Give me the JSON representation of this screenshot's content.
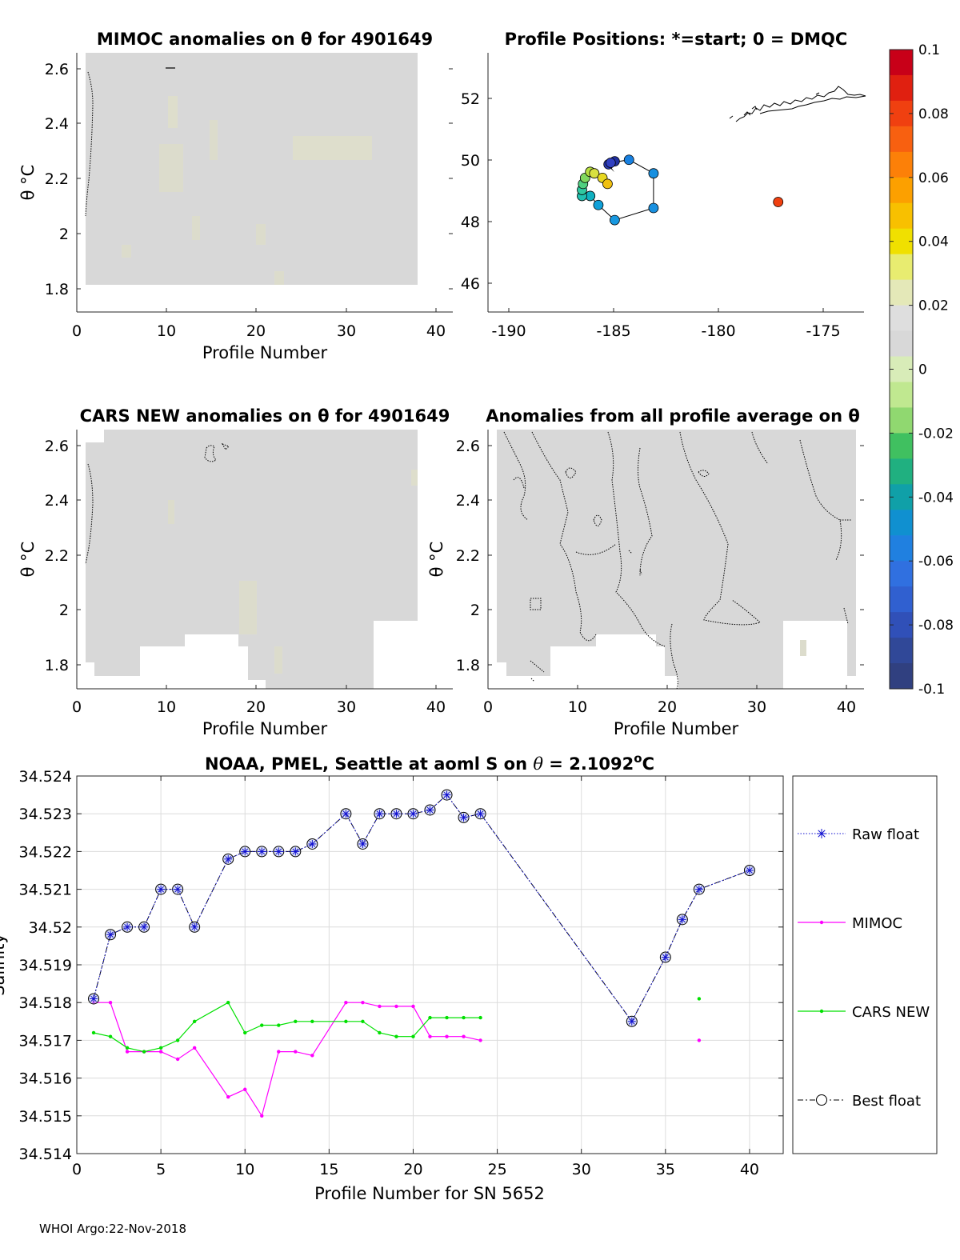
{
  "footer": "WHOI Argo:22-Nov-2018",
  "colors": {
    "field": "#d8d8d8",
    "field_tint": "#dfdfcf",
    "raw": "#1010d0",
    "mimoc": "#ff00ff",
    "cars": "#00e000",
    "best": "#000000",
    "grid": "#dcdcdc"
  },
  "panels": {
    "mimoc": {
      "title": "MIMOC anomalies on θ  for 4901649",
      "ylabel": "θ °C",
      "xlabel": "Profile Number",
      "xticks": [
        "0",
        "10",
        "20",
        "30",
        "40"
      ],
      "yticks": [
        "1.8",
        "2",
        "2.2",
        "2.4",
        "2.6"
      ]
    },
    "positions": {
      "title": "Profile Positions: *=start; 0 = DMQC",
      "xticks": [
        "-190",
        "-185",
        "-180",
        "-175"
      ],
      "yticks": [
        "46",
        "48",
        "50",
        "52"
      ]
    },
    "cars": {
      "title": "CARS NEW anomalies on θ for 4901649",
      "ylabel": "θ °C",
      "xlabel": "Profile Number",
      "xticks": [
        "0",
        "10",
        "20",
        "30",
        "40"
      ],
      "yticks": [
        "1.8",
        "2",
        "2.2",
        "2.4",
        "2.6"
      ]
    },
    "allavg": {
      "title": "Anomalies from all profile average on θ",
      "ylabel": "θ °C",
      "xlabel": "Profile Number",
      "xticks": [
        "0",
        "10",
        "20",
        "30",
        "40"
      ],
      "yticks": [
        "1.8",
        "2",
        "2.2",
        "2.4",
        "2.6"
      ]
    }
  },
  "colorbar": {
    "ticks": [
      "0.1",
      "0.08",
      "0.06",
      "0.04",
      "0.02",
      "0",
      "-0.02",
      "-0.04",
      "-0.06",
      "-0.08",
      "-0.1"
    ],
    "colors": [
      "#c80018",
      "#e02010",
      "#f04010",
      "#f86010",
      "#fc8008",
      "#fca000",
      "#f8c000",
      "#f0e000",
      "#e8ec70",
      "#e4e8b8",
      "#dedede",
      "#d8d8d8",
      "#d8ecb8",
      "#c0e890",
      "#90d870",
      "#40c060",
      "#20b080",
      "#10a0a8",
      "#1090d0",
      "#2080e0",
      "#3070e0",
      "#3060d0",
      "#3050b8",
      "#304898",
      "#304080"
    ]
  },
  "chart_data": [
    {
      "type": "heatmap",
      "title": "MIMOC anomalies on θ  for 4901649",
      "xlabel": "Profile Number",
      "ylabel": "θ °C",
      "xlim": [
        0,
        42
      ],
      "ylim": [
        1.71,
        2.66
      ]
    },
    {
      "type": "scatter",
      "title": "Profile Positions: *=start; 0 = DMQC",
      "xlim": [
        -191.2,
        -172.8
      ],
      "ylim": [
        45.0,
        53.6
      ],
      "start": [
        -185.0,
        49.6
      ],
      "points": [
        {
          "x": -185.0,
          "y": 49.6,
          "color": "#ffffff"
        },
        {
          "x": -185.3,
          "y": 49.9,
          "color": "#2838b0"
        },
        {
          "x": -185.0,
          "y": 50.0,
          "color": "#2030a0"
        },
        {
          "x": -185.2,
          "y": 49.95,
          "color": "#3040c0"
        },
        {
          "x": -184.3,
          "y": 50.05,
          "color": "#1880e0"
        },
        {
          "x": -183.1,
          "y": 49.6,
          "color": "#1890e0"
        },
        {
          "x": -183.1,
          "y": 48.45,
          "color": "#1890e0"
        },
        {
          "x": -185.0,
          "y": 48.05,
          "color": "#1898e0"
        },
        {
          "x": -185.8,
          "y": 48.55,
          "color": "#10a0d8"
        },
        {
          "x": -186.2,
          "y": 48.85,
          "color": "#10b0c0"
        },
        {
          "x": -186.6,
          "y": 48.85,
          "color": "#20c0b0"
        },
        {
          "x": -186.6,
          "y": 49.05,
          "color": "#30c8a0"
        },
        {
          "x": -186.55,
          "y": 49.25,
          "color": "#50d080"
        },
        {
          "x": -186.45,
          "y": 49.45,
          "color": "#80d860"
        },
        {
          "x": -186.2,
          "y": 49.65,
          "color": "#b8e040"
        },
        {
          "x": -186.0,
          "y": 49.6,
          "color": "#d8e040"
        },
        {
          "x": -185.6,
          "y": 49.45,
          "color": "#e8d820"
        },
        {
          "x": -185.35,
          "y": 49.25,
          "color": "#f0c010"
        },
        {
          "x": -177.0,
          "y": 48.65,
          "color": "#f04010"
        }
      ]
    },
    {
      "type": "heatmap",
      "title": "CARS NEW anomalies on θ for 4901649",
      "xlabel": "Profile Number",
      "ylabel": "θ °C",
      "xlim": [
        0,
        42
      ],
      "ylim": [
        1.71,
        2.66
      ]
    },
    {
      "type": "heatmap",
      "title": "Anomalies from all profile average on θ",
      "xlabel": "Profile Number",
      "ylabel": "θ °C",
      "xlim": [
        0,
        42
      ],
      "ylim": [
        1.71,
        2.66
      ]
    },
    {
      "type": "line",
      "title": "NOAA, PMEL, Seattle at aoml S on θ = 2.1092°C",
      "title_main": "NOAA, PMEL, Seattle at aoml S on ",
      "title_theta": "θ",
      "title_eq": " = 2.1092",
      "title_sup": "o",
      "title_unit": "C",
      "xlabel": "Profile Number for SN 5652",
      "ylabel": "Salinity",
      "xlim": [
        0,
        42
      ],
      "ylim": [
        34.514,
        34.524
      ],
      "grid": true,
      "legend_position": "outside-right",
      "xticks": [
        "0",
        "5",
        "10",
        "15",
        "20",
        "25",
        "30",
        "35",
        "40"
      ],
      "yticks": [
        "34.514",
        "34.515",
        "34.516",
        "34.517",
        "34.518",
        "34.519",
        "34.52",
        "34.521",
        "34.522",
        "34.523",
        "34.524"
      ],
      "series": [
        {
          "name": "Raw float",
          "x": [
            1,
            2,
            3,
            4,
            5,
            6,
            7,
            9,
            10,
            11,
            12,
            13,
            14,
            16,
            17,
            18,
            19,
            20,
            21,
            22,
            23,
            24,
            33,
            35,
            36,
            37,
            40
          ],
          "y": [
            34.5181,
            34.5198,
            34.52,
            34.52,
            34.521,
            34.521,
            34.52,
            34.5218,
            34.522,
            34.522,
            34.522,
            34.522,
            34.5222,
            34.523,
            34.5222,
            34.523,
            34.523,
            34.523,
            34.5231,
            34.5235,
            34.5229,
            34.523,
            34.5175,
            34.5192,
            34.5202,
            34.521,
            34.5215
          ]
        },
        {
          "name": "MIMOC",
          "x": [
            1,
            2,
            3,
            4,
            5,
            6,
            7,
            9,
            10,
            11,
            12,
            13,
            14,
            16,
            17,
            18,
            19,
            20,
            21,
            22,
            23,
            24,
            37
          ],
          "y": [
            34.518,
            34.518,
            34.5167,
            34.5167,
            34.5167,
            34.5165,
            34.5168,
            34.5155,
            34.5157,
            34.515,
            34.5167,
            34.5167,
            34.5166,
            34.518,
            34.518,
            34.5179,
            34.5179,
            34.5179,
            34.5171,
            34.5171,
            34.5171,
            34.517,
            34.517
          ],
          "segments": [
            [
              0,
              22
            ],
            [
              22,
              23
            ]
          ]
        },
        {
          "name": "CARS NEW",
          "x": [
            1,
            2,
            3,
            4,
            5,
            6,
            7,
            9,
            10,
            11,
            12,
            13,
            14,
            16,
            17,
            18,
            19,
            20,
            21,
            22,
            23,
            24,
            37
          ],
          "y": [
            34.5172,
            34.5171,
            34.5168,
            34.5167,
            34.5168,
            34.517,
            34.5175,
            34.518,
            34.5172,
            34.5174,
            34.5174,
            34.5175,
            34.5175,
            34.5175,
            34.5175,
            34.5172,
            34.5171,
            34.5171,
            34.5176,
            34.5176,
            34.5176,
            34.5176,
            34.5181
          ],
          "segments": [
            [
              0,
              22
            ],
            [
              22,
              23
            ]
          ]
        },
        {
          "name": "Best float",
          "x": [
            1,
            2,
            3,
            4,
            5,
            6,
            7,
            9,
            10,
            11,
            12,
            13,
            14,
            16,
            17,
            18,
            19,
            20,
            21,
            22,
            23,
            24,
            33,
            35,
            36,
            37,
            40
          ],
          "y": [
            34.5181,
            34.5198,
            34.52,
            34.52,
            34.521,
            34.521,
            34.52,
            34.5218,
            34.522,
            34.522,
            34.522,
            34.522,
            34.5222,
            34.523,
            34.5222,
            34.523,
            34.523,
            34.523,
            34.5231,
            34.5235,
            34.5229,
            34.523,
            34.5175,
            34.5192,
            34.5202,
            34.521,
            34.5215
          ]
        }
      ]
    }
  ]
}
